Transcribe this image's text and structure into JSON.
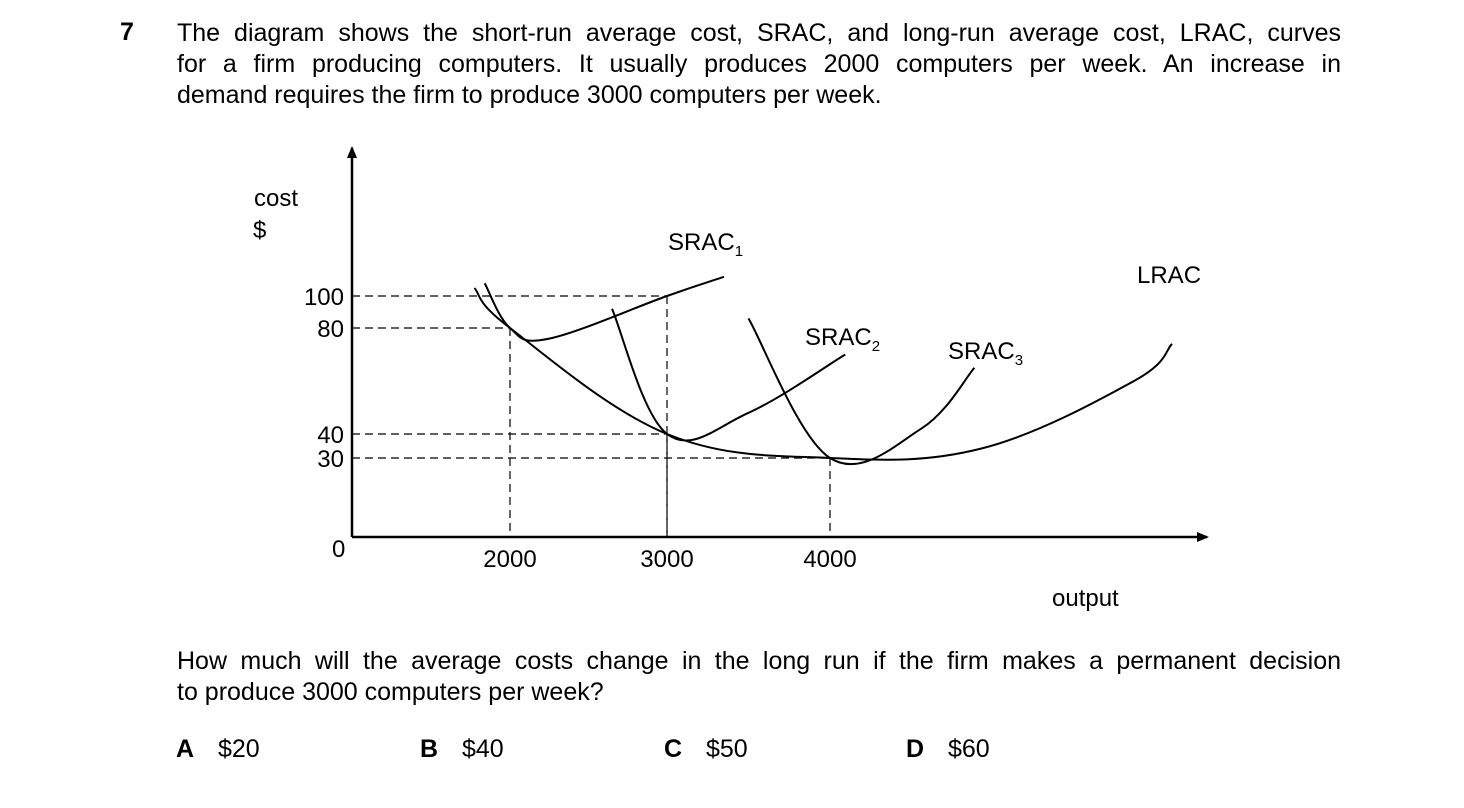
{
  "question": {
    "number": "7",
    "intro_lines": [
      "The diagram shows the short-run average cost, SRAC, and long-run average cost, LRAC, curves",
      "for a firm producing computers. It usually produces 2000 computers per week. An increase in",
      "demand requires the firm to produce 3000 computers per week."
    ],
    "prompt_lines": [
      "How much will the average costs change in the long run if the firm makes a permanent decision",
      "to produce 3000 computers per week?"
    ],
    "options": [
      {
        "letter": "A",
        "value": "$20"
      },
      {
        "letter": "B",
        "value": "$40"
      },
      {
        "letter": "C",
        "value": "$50"
      },
      {
        "letter": "D",
        "value": "$60"
      }
    ]
  },
  "chart_data": {
    "type": "line",
    "ylabel_line1": "cost",
    "ylabel_line2": "$",
    "xlabel": "output",
    "origin_label": "0",
    "y_ticks": [
      100,
      80,
      40,
      30
    ],
    "x_ticks": [
      2000,
      3000,
      4000
    ],
    "ylim": [
      0,
      160
    ],
    "xlim": [
      0,
      6500
    ],
    "series": [
      {
        "name": "LRAC",
        "label": "LRAC",
        "sub": "",
        "x": [
          1550,
          2000,
          3000,
          4000,
          5000,
          6000,
          6250
        ],
        "y": [
          105,
          80,
          40,
          30,
          34,
          60,
          74
        ]
      },
      {
        "name": "SRAC1",
        "label": "SRAC",
        "sub": "1",
        "x": [
          1680,
          2000,
          2250,
          3000,
          3350
        ],
        "y": [
          108,
          80,
          76,
          100,
          112
        ]
      },
      {
        "name": "SRAC2",
        "label": "SRAC",
        "sub": "2",
        "x": [
          2650,
          3000,
          3500,
          4100
        ],
        "y": [
          92,
          40,
          48,
          70
        ]
      },
      {
        "name": "SRAC3",
        "label": "SRAC",
        "sub": "3",
        "x": [
          3500,
          4000,
          4600,
          4950
        ],
        "y": [
          86,
          30,
          42,
          65
        ]
      }
    ],
    "guides": [
      {
        "x": 2000,
        "y": 80
      },
      {
        "x": 3000,
        "y": 100
      },
      {
        "x": 3000,
        "y": 40
      },
      {
        "x": 4000,
        "y": 30
      }
    ]
  }
}
